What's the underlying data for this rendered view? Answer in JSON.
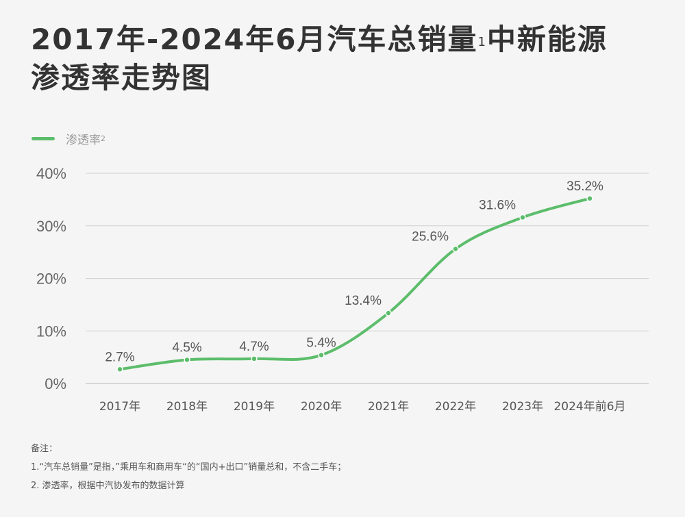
{
  "title": {
    "line1": "2017年-2024年6月汽车总销量",
    "sup": "1",
    "line1b": "中新能源",
    "line2": "渗透率走势图"
  },
  "legend": {
    "label": "渗透率",
    "sup": "2"
  },
  "chart_data": {
    "type": "line",
    "title": "2017年-2024年6月汽车总销量中新能源渗透率走势图",
    "categories": [
      "2017年",
      "2018年",
      "2019年",
      "2020年",
      "2021年",
      "2022年",
      "2023年",
      "2024年前6月"
    ],
    "series": [
      {
        "name": "渗透率",
        "values": [
          2.7,
          4.5,
          4.7,
          5.4,
          13.4,
          25.6,
          31.6,
          35.2
        ],
        "color": "#5cbd6b"
      }
    ],
    "data_labels": [
      "2.7%",
      "4.5%",
      "4.7%",
      "5.4%",
      "13.4%",
      "25.6%",
      "31.6%",
      "35.2%"
    ],
    "yticks": [
      "0%",
      "10%",
      "20%",
      "30%",
      "40%"
    ],
    "ylim": [
      0,
      40
    ],
    "grid": true,
    "legend_position": "top-left"
  },
  "notes": {
    "heading": "备注：",
    "items": [
      "1.“汽车总销量”是指，”乘用车和商用车“的“国内+出口”销量总和，不含二手车；",
      "2. 渗透率，根据中汽协发布的数据计算"
    ]
  }
}
